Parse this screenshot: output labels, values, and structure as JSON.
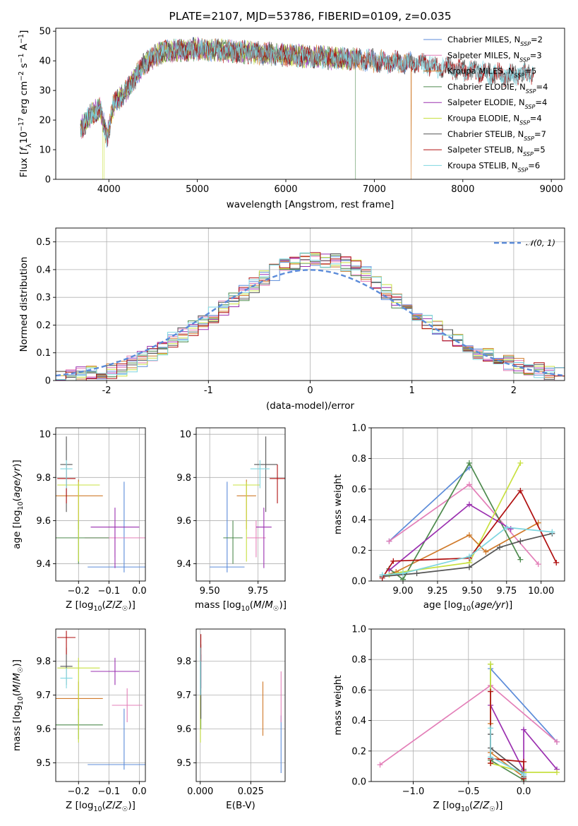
{
  "chart_data": [
    {
      "type": "line",
      "title": "PLATE=2107, MJD=53786, FIBERID=0109, z=0.035",
      "xlabel": "wavelength [Angstrom, rest frame]",
      "ylabel": "Flux [f_λ10^-17 erg cm^-2 s^-1 A^-1]",
      "xlim": [
        3400,
        9150
      ],
      "ylim": [
        0,
        51
      ],
      "xticks": [
        4000,
        5000,
        6000,
        7000,
        8000,
        9000
      ],
      "yticks": [
        0,
        10,
        20,
        30,
        40,
        50
      ],
      "grid": false,
      "legend": "top-right",
      "series": [
        {
          "name": "Chabrier MILES",
          "nssp": "2",
          "color": "#5b8bd9",
          "xmax": 7420
        },
        {
          "name": "Salpeter MILES",
          "nssp": "3",
          "color": "#e37fb8",
          "xmax": 7420
        },
        {
          "name": "Kroupa MILES",
          "nssp": "5",
          "color": "#d07a2a",
          "xmax": 7420,
          "drop": 7415
        },
        {
          "name": "Chabrier ELODIE",
          "nssp": "4",
          "color": "#4d8a4d",
          "xmax": 6790,
          "drop": 6790
        },
        {
          "name": "Salpeter ELODIE",
          "nssp": "4",
          "color": "#9b30b0",
          "xmax": 6790
        },
        {
          "name": "Kroupa ELODIE",
          "nssp": "4",
          "color": "#c8e040",
          "xmax": 6790,
          "drop": 6800
        },
        {
          "name": "Chabrier STELIB",
          "nssp": "7",
          "color": "#555555",
          "xmax": 8800
        },
        {
          "name": "Salpeter STELIB",
          "nssp": "5",
          "color": "#b01010",
          "xmax": 8800
        },
        {
          "name": "Kroupa STELIB",
          "nssp": "6",
          "color": "#7ed6e0",
          "xmax": 8800
        }
      ],
      "spectrum_profile": [
        [
          3680,
          17
        ],
        [
          3800,
          22
        ],
        [
          3900,
          24
        ],
        [
          3980,
          14
        ],
        [
          4050,
          25
        ],
        [
          4200,
          30
        ],
        [
          4400,
          39
        ],
        [
          4600,
          43
        ],
        [
          5000,
          44
        ],
        [
          5500,
          43
        ],
        [
          6000,
          42
        ],
        [
          6500,
          41
        ],
        [
          7000,
          40
        ],
        [
          7500,
          39
        ],
        [
          8000,
          37
        ],
        [
          8500,
          35
        ],
        [
          8800,
          36
        ]
      ]
    },
    {
      "type": "step",
      "xlabel": "(data-model)/error",
      "ylabel": "Normed distribution",
      "xlim": [
        -2.5,
        2.5
      ],
      "ylim": [
        0,
        0.55
      ],
      "xticks": [
        -2,
        -1,
        0,
        1,
        2
      ],
      "yticks": [
        0.0,
        0.1,
        0.2,
        0.3,
        0.4,
        0.5
      ],
      "grid": true,
      "legend": "top-right",
      "reference_curve": {
        "name": "𝒩(0, 1)",
        "type": "normal",
        "mean": 0,
        "sigma": 1,
        "color": "#5b8bd9"
      },
      "bin_width": 0.1,
      "histogram_envelope": [
        [
          -2.5,
          0.015
        ],
        [
          -2.0,
          0.025
        ],
        [
          -1.8,
          0.05
        ],
        [
          -1.5,
          0.11
        ],
        [
          -1.2,
          0.18
        ],
        [
          -1.0,
          0.22
        ],
        [
          -0.8,
          0.28
        ],
        [
          -0.6,
          0.33
        ],
        [
          -0.4,
          0.38
        ],
        [
          -0.2,
          0.42
        ],
        [
          0.0,
          0.44
        ],
        [
          0.2,
          0.43
        ],
        [
          0.4,
          0.42
        ],
        [
          0.6,
          0.37
        ],
        [
          0.8,
          0.3
        ],
        [
          1.0,
          0.25
        ],
        [
          1.2,
          0.2
        ],
        [
          1.4,
          0.15
        ],
        [
          1.6,
          0.11
        ],
        [
          1.8,
          0.08
        ],
        [
          2.0,
          0.06
        ],
        [
          2.2,
          0.04
        ],
        [
          2.5,
          0.015
        ]
      ]
    },
    {
      "type": "scatter",
      "xlabel": "Z [log10(Z/Z☉)]",
      "ylabel": "age [log10(age/yr)]",
      "xlim": [
        -0.275,
        0.02
      ],
      "ylim": [
        9.32,
        10.03
      ],
      "xticks": [
        -0.2,
        -0.1,
        0.0
      ],
      "xticklabels": [
        "−0.2",
        "−0.1",
        "0.0"
      ],
      "yticks": [
        9.4,
        9.6,
        9.8,
        10.0
      ],
      "grid": true,
      "points": [
        {
          "color": "#5b8bd9",
          "x": -0.05,
          "xerr": 0.12,
          "y": 9.385,
          "y1": 9.36,
          "y2": 9.78
        },
        {
          "color": "#e37fb8",
          "x": -0.08,
          "xerr": 0.1,
          "y": 9.52,
          "y1": 9.43,
          "y2": 9.6
        },
        {
          "color": "#d07a2a",
          "x": -0.2,
          "xerr": 0.08,
          "y": 9.715,
          "y1": 9.56,
          "y2": 9.79
        },
        {
          "color": "#4d8a4d",
          "x": -0.2,
          "xerr": 0.1,
          "y": 9.52,
          "y1": 9.4,
          "y2": 9.6
        },
        {
          "color": "#9b30b0",
          "x": -0.08,
          "xerr": 0.08,
          "y": 9.57,
          "y1": 9.38,
          "y2": 9.66
        },
        {
          "color": "#c8e040",
          "x": -0.2,
          "xerr": 0.07,
          "y": 9.765,
          "y1": 9.41,
          "y2": 9.78
        },
        {
          "color": "#555555",
          "x": -0.24,
          "xerr": 0.02,
          "y": 9.86,
          "y1": 9.64,
          "y2": 9.99
        },
        {
          "color": "#b01010",
          "x": -0.24,
          "xerr": 0.03,
          "y": 9.795,
          "y1": 9.68,
          "y2": 9.86
        },
        {
          "color": "#7ed6e0",
          "x": -0.24,
          "xerr": 0.02,
          "y": 9.84,
          "y1": 9.75,
          "y2": 9.88
        }
      ]
    },
    {
      "type": "scatter",
      "xlabel": "mass [log10(M/M☉)]",
      "ylabel": "",
      "xlim": [
        9.43,
        9.89
      ],
      "ylim": [
        9.32,
        10.03
      ],
      "xticks": [
        9.5,
        9.75
      ],
      "xticklabels": [
        "9.50",
        "9.75"
      ],
      "yticks": [
        9.4,
        9.6,
        9.8,
        10.0
      ],
      "grid": true,
      "points": [
        {
          "color": "#5b8bd9",
          "x": 9.59,
          "xerr": 0.09,
          "y": 9.385,
          "y1": 9.36,
          "y2": 9.78
        },
        {
          "color": "#e37fb8",
          "x": 9.74,
          "xerr": 0.05,
          "y": 9.52,
          "y1": 9.43,
          "y2": 9.6
        },
        {
          "color": "#d07a2a",
          "x": 9.69,
          "xerr": 0.05,
          "y": 9.715,
          "y1": 9.56,
          "y2": 9.79
        },
        {
          "color": "#4d8a4d",
          "x": 9.62,
          "xerr": 0.05,
          "y": 9.52,
          "y1": 9.4,
          "y2": 9.6
        },
        {
          "color": "#9b30b0",
          "x": 9.78,
          "xerr": 0.04,
          "y": 9.57,
          "y1": 9.38,
          "y2": 9.66
        },
        {
          "color": "#c8e040",
          "x": 9.69,
          "xerr": 0.07,
          "y": 9.765,
          "y1": 9.41,
          "y2": 9.78
        },
        {
          "color": "#555555",
          "x": 9.79,
          "xerr": 0.06,
          "y": 9.86,
          "y1": 9.64,
          "y2": 9.99
        },
        {
          "color": "#b01010",
          "x": 9.85,
          "xerr": 0.04,
          "y": 9.795,
          "y1": 9.68,
          "y2": 9.86
        },
        {
          "color": "#7ed6e0",
          "x": 9.76,
          "xerr": 0.05,
          "y": 9.84,
          "y1": 9.75,
          "y2": 9.88
        }
      ]
    },
    {
      "type": "line",
      "xlabel": "age  [log10(age/yr)]",
      "ylabel": "mass weight",
      "xlim": [
        8.77,
        10.17
      ],
      "ylim": [
        0,
        1
      ],
      "xticks": [
        9.0,
        9.25,
        9.5,
        9.75,
        10.0
      ],
      "xticklabels": [
        "9.00",
        "9.25",
        "9.50",
        "9.75",
        "10.00"
      ],
      "yticks": [
        0,
        0.2,
        0.4,
        0.6,
        0.8,
        1.0
      ],
      "yticklabels": [
        "0.0",
        "0.2",
        "0.4",
        "0.6",
        "0.8",
        "1.0"
      ],
      "grid": true,
      "series": [
        {
          "color": "#5b8bd9",
          "x": [
            8.9,
            9.48
          ],
          "y": [
            0.26,
            0.74
          ]
        },
        {
          "color": "#e37fb8",
          "x": [
            8.9,
            9.48,
            9.98
          ],
          "y": [
            0.26,
            0.63,
            0.11
          ]
        },
        {
          "color": "#d07a2a",
          "x": [
            8.85,
            8.95,
            9.48,
            9.6,
            9.98
          ],
          "y": [
            0.03,
            0.06,
            0.3,
            0.19,
            0.38
          ]
        },
        {
          "color": "#4d8a4d",
          "x": [
            8.9,
            9.0,
            9.48,
            9.85
          ],
          "y": [
            0.08,
            0.01,
            0.77,
            0.14
          ]
        },
        {
          "color": "#9b30b0",
          "x": [
            8.9,
            9.48,
            9.78
          ],
          "y": [
            0.07,
            0.5,
            0.34
          ]
        },
        {
          "color": "#c8e040",
          "x": [
            8.9,
            9.0,
            9.48,
            9.85
          ],
          "y": [
            0.04,
            0.06,
            0.12,
            0.77
          ]
        },
        {
          "color": "#555555",
          "x": [
            8.85,
            9.1,
            9.48,
            9.7,
            9.85,
            10.08
          ],
          "y": [
            0.03,
            0.05,
            0.09,
            0.22,
            0.26,
            0.31
          ]
        },
        {
          "color": "#b01010",
          "x": [
            8.85,
            8.93,
            9.48,
            9.85,
            10.11
          ],
          "y": [
            0.02,
            0.13,
            0.15,
            0.59,
            0.12
          ]
        },
        {
          "color": "#7ed6e0",
          "x": [
            8.85,
            9.0,
            9.48,
            9.75,
            10.08
          ],
          "y": [
            0.04,
            0.05,
            0.16,
            0.35,
            0.32
          ]
        }
      ]
    },
    {
      "type": "scatter",
      "xlabel": "Z [log10(Z/Z☉)]",
      "ylabel": "mass [log10(M/M☉)]",
      "xlim": [
        -0.275,
        0.02
      ],
      "ylim": [
        9.445,
        9.895
      ],
      "xticks": [
        -0.2,
        -0.1,
        0.0
      ],
      "xticklabels": [
        "−0.2",
        "−0.1",
        "0.0"
      ],
      "yticks": [
        9.5,
        9.6,
        9.7,
        9.8
      ],
      "grid": true,
      "points": [
        {
          "color": "#5b8bd9",
          "x": -0.05,
          "xerr": 0.12,
          "y": 9.495,
          "y1": 9.48,
          "y2": 9.66
        },
        {
          "color": "#e37fb8",
          "x": -0.04,
          "xerr": 0.05,
          "y": 9.67,
          "y1": 9.62,
          "y2": 9.72
        },
        {
          "color": "#d07a2a",
          "x": -0.2,
          "xerr": 0.08,
          "y": 9.69,
          "y1": 9.64,
          "y2": 9.74
        },
        {
          "color": "#4d8a4d",
          "x": -0.2,
          "xerr": 0.08,
          "y": 9.612,
          "y1": 9.57,
          "y2": 9.66
        },
        {
          "color": "#9b30b0",
          "x": -0.08,
          "xerr": 0.08,
          "y": 9.77,
          "y1": 9.73,
          "y2": 9.81
        },
        {
          "color": "#c8e040",
          "x": -0.2,
          "xerr": 0.07,
          "y": 9.78,
          "y1": 9.56,
          "y2": 9.81
        },
        {
          "color": "#555555",
          "x": -0.24,
          "xerr": 0.02,
          "y": 9.785,
          "y1": 9.73,
          "y2": 9.84
        },
        {
          "color": "#b01010",
          "x": -0.24,
          "xerr": 0.03,
          "y": 9.87,
          "y1": 9.82,
          "y2": 9.89
        },
        {
          "color": "#7ed6e0",
          "x": -0.24,
          "xerr": 0.02,
          "y": 9.75,
          "y1": 9.72,
          "y2": 9.78
        }
      ]
    },
    {
      "type": "scatter",
      "xlabel": "E(B-V)",
      "ylabel": "",
      "xlim": [
        -0.002,
        0.042
      ],
      "ylim": [
        9.445,
        9.895
      ],
      "xticks": [
        0.0,
        0.025
      ],
      "xticklabels": [
        "0.000",
        "0.025"
      ],
      "yticks": [
        9.5,
        9.6,
        9.7,
        9.8
      ],
      "grid": true,
      "points": [
        {
          "color": "#5b8bd9",
          "x": 0.04,
          "y1": 9.47,
          "y2": 9.64
        },
        {
          "color": "#e37fb8",
          "x": 0.04,
          "y1": 9.62,
          "y2": 9.77
        },
        {
          "color": "#d07a2a",
          "x": 0.031,
          "y1": 9.58,
          "y2": 9.74
        },
        {
          "color": "#4d8a4d",
          "x": 0.0003,
          "y1": 9.6,
          "y2": 9.7
        },
        {
          "color": "#9b30b0",
          "x": 0.0003,
          "y1": 9.72,
          "y2": 9.82
        },
        {
          "color": "#c8e040",
          "x": 0.0001,
          "y1": 9.56,
          "y2": 9.7
        },
        {
          "color": "#555555",
          "x": 0.0003,
          "y1": 9.63,
          "y2": 9.85
        },
        {
          "color": "#b01010",
          "x": 0.0003,
          "y1": 9.8,
          "y2": 9.88
        },
        {
          "color": "#7ed6e0",
          "x": 0.0001,
          "y1": 9.7,
          "y2": 9.84
        }
      ]
    },
    {
      "type": "line",
      "xlabel": "Z [log10(Z/Z☉)]",
      "ylabel": "mass weight",
      "xlim": [
        -1.38,
        0.37
      ],
      "ylim": [
        0,
        1
      ],
      "xticks": [
        -1.0,
        -0.5,
        0.0
      ],
      "xticklabels": [
        "−1.0",
        "−0.5",
        "0.0"
      ],
      "yticks": [
        0,
        0.2,
        0.4,
        0.6,
        0.8,
        1.0
      ],
      "yticklabels": [
        "0.0",
        "0.2",
        "0.4",
        "0.6",
        "0.8",
        "1.0"
      ],
      "grid": true,
      "series": [
        {
          "color": "#5b8bd9",
          "x": [
            -0.3,
            0.3
          ],
          "y": [
            0.74,
            0.26
          ]
        },
        {
          "color": "#e37fb8",
          "x": [
            -1.3,
            -0.3,
            0.3
          ],
          "y": [
            0.11,
            0.63,
            0.26
          ]
        },
        {
          "color": "#d07a2a",
          "x": [
            -0.3,
            -0.3,
            0.0,
            0.0
          ],
          "y": [
            0.38,
            0.19,
            0.03,
            0.06
          ]
        },
        {
          "color": "#4d8a4d",
          "x": [
            -0.3,
            -0.3,
            0.0,
            0.0
          ],
          "y": [
            0.77,
            0.14,
            0.01,
            0.08
          ]
        },
        {
          "color": "#9b30b0",
          "x": [
            -0.3,
            0.0,
            0.0,
            0.3
          ],
          "y": [
            0.5,
            0.07,
            0.34,
            0.08
          ]
        },
        {
          "color": "#c8e040",
          "x": [
            -0.3,
            -0.3,
            0.0,
            0.3
          ],
          "y": [
            0.77,
            0.12,
            0.06,
            0.06
          ]
        },
        {
          "color": "#555555",
          "x": [
            -0.3,
            -0.3,
            0.0,
            0.0
          ],
          "y": [
            0.31,
            0.22,
            0.05,
            0.03
          ]
        },
        {
          "color": "#b01010",
          "x": [
            -0.3,
            -0.3,
            -0.3,
            0.0,
            0.0
          ],
          "y": [
            0.59,
            0.12,
            0.15,
            0.13,
            0.02
          ]
        },
        {
          "color": "#7ed6e0",
          "x": [
            -0.3,
            -0.3,
            0.0,
            0.0
          ],
          "y": [
            0.35,
            0.16,
            0.05,
            0.04
          ]
        }
      ]
    }
  ]
}
